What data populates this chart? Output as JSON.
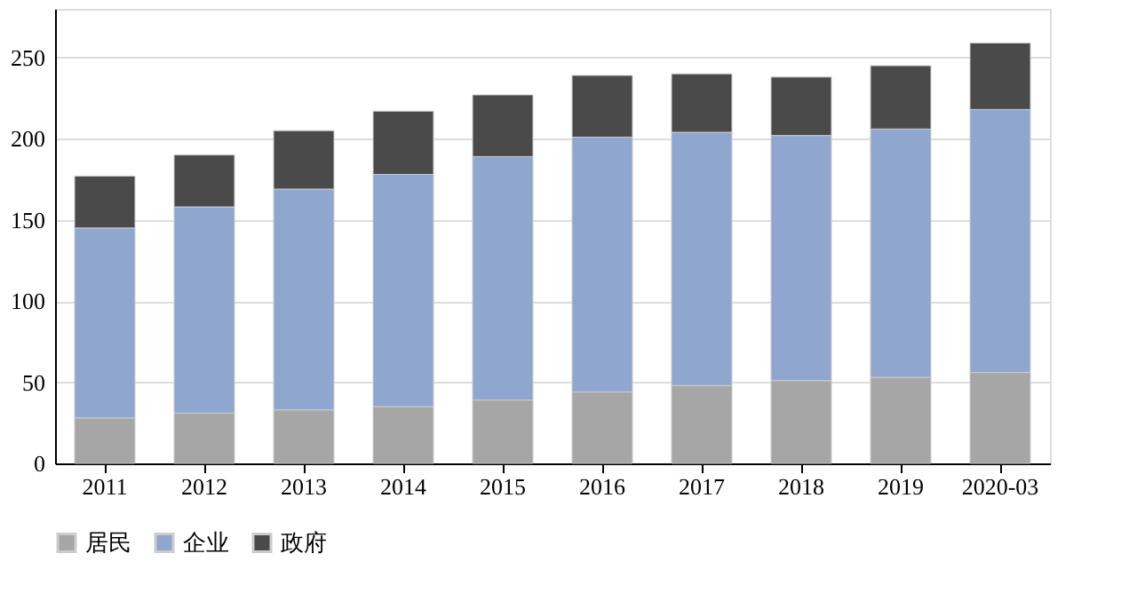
{
  "chart_data": {
    "type": "bar",
    "stacked": true,
    "categories": [
      "2011",
      "2012",
      "2013",
      "2014",
      "2015",
      "2016",
      "2017",
      "2018",
      "2019",
      "2020-03"
    ],
    "series": [
      {
        "name": "居民",
        "color": "#a6a6a6",
        "values": [
          28,
          31,
          33,
          35,
          39,
          44,
          48,
          51,
          53,
          56
        ]
      },
      {
        "name": "企业",
        "color": "#8fa6cf",
        "values": [
          117,
          127,
          136,
          143,
          150,
          157,
          156,
          151,
          153,
          162
        ]
      },
      {
        "name": "政府",
        "color": "#4a4a4a",
        "values": [
          32,
          32,
          36,
          39,
          38,
          38,
          36,
          36,
          39,
          41
        ]
      }
    ],
    "ylim": [
      0,
      280
    ],
    "yticks": [
      0,
      50,
      100,
      150,
      200,
      250
    ],
    "grid": "y",
    "legend": "bottom"
  }
}
